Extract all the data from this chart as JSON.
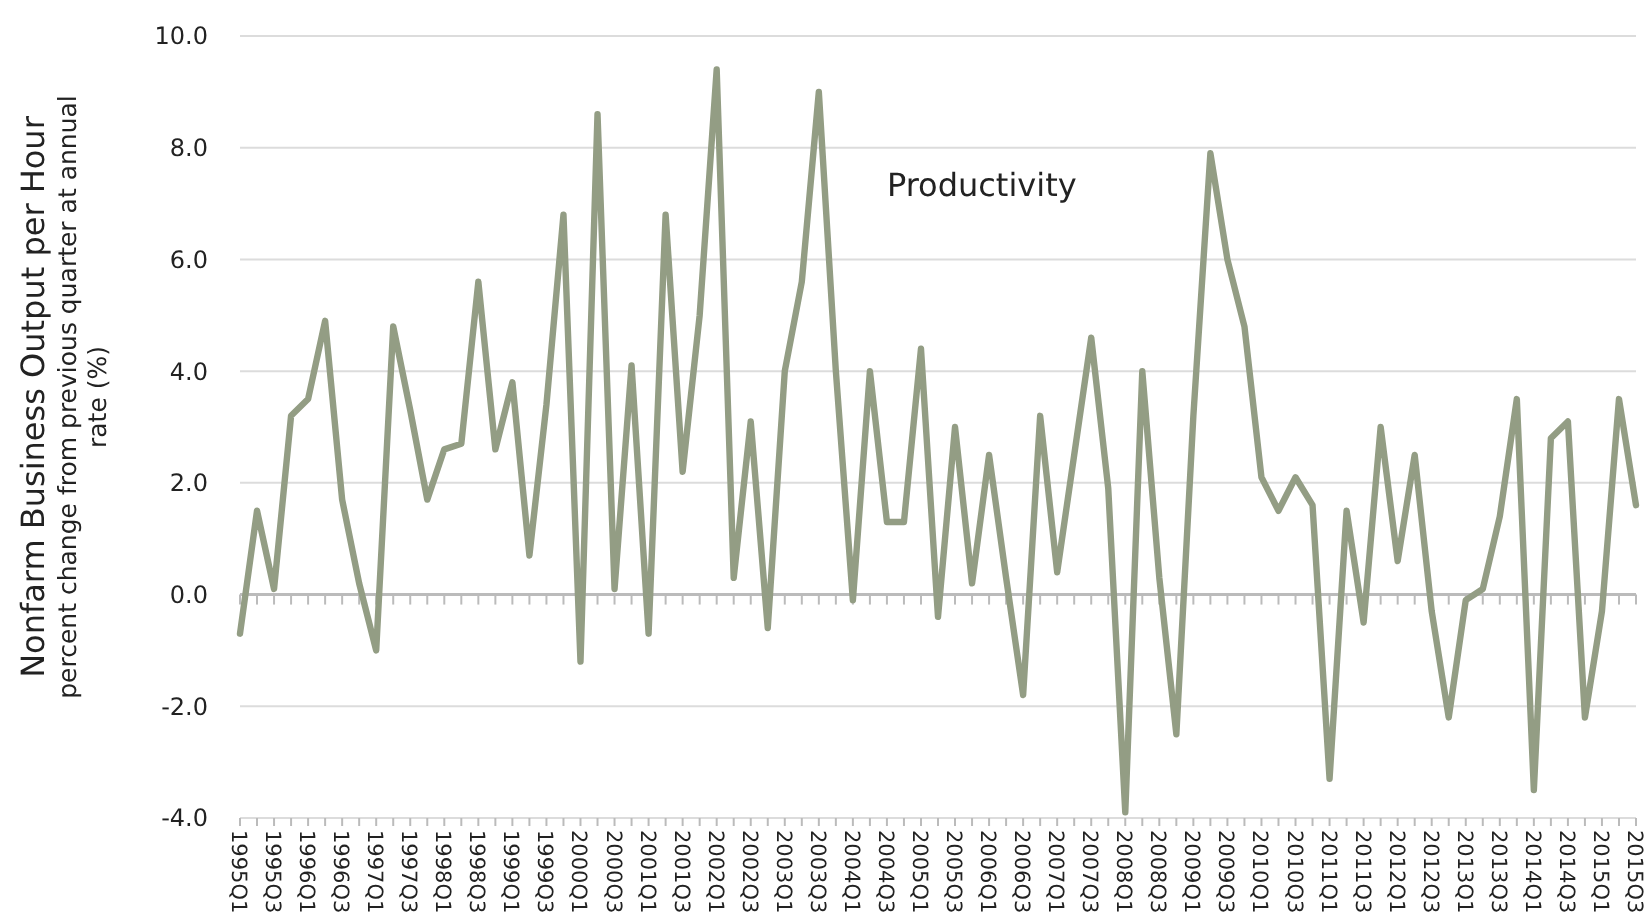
{
  "chart_data": {
    "type": "line",
    "ylabel": "Nonfarm Business Output per Hour",
    "annotations": [
      "percent change from previous quarter at annual rate (%)"
    ],
    "categories": [
      "1995Q1",
      null,
      "1995Q3",
      null,
      "1996Q1",
      null,
      "1996Q3",
      null,
      "1997Q1",
      null,
      "1997Q3",
      null,
      "1998Q1",
      null,
      "1998Q3",
      null,
      "1999Q1",
      null,
      "1999Q3",
      null,
      "2000Q1",
      null,
      "2000Q3",
      null,
      "2001Q1",
      null,
      "2001Q3",
      null,
      "2002Q1",
      null,
      "2002Q3",
      null,
      "2003Q1",
      null,
      "2003Q3",
      null,
      "2004Q1",
      null,
      "2004Q3",
      null,
      "2005Q1",
      null,
      "2005Q3",
      null,
      "2006Q1",
      null,
      "2006Q3",
      null,
      "2007Q1",
      null,
      "2007Q3",
      null,
      "2008Q1",
      null,
      "2008Q3",
      null,
      "2009Q1",
      null,
      "2009Q3",
      null,
      "2010Q1",
      null,
      "2010Q3",
      null,
      "2011Q1",
      null,
      "2011Q3",
      null,
      "2012Q1",
      null,
      "2012Q3",
      null,
      "2013Q1",
      null,
      "2013Q3",
      null,
      "2014Q1",
      null,
      "2014Q3",
      null,
      "2015Q1",
      null,
      "2015Q3"
    ],
    "series": [
      {
        "name": "Productivity",
        "color": "#939d84",
        "values": [
          -0.7,
          1.5,
          0.1,
          3.2,
          3.5,
          4.9,
          1.7,
          0.2,
          -1.0,
          4.8,
          3.3,
          1.7,
          2.6,
          2.7,
          5.6,
          2.6,
          3.8,
          0.7,
          3.4,
          6.8,
          -1.2,
          8.6,
          0.1,
          4.1,
          -0.7,
          6.8,
          2.2,
          5.0,
          9.4,
          0.3,
          3.1,
          -0.6,
          4.0,
          5.6,
          9.0,
          4.0,
          -0.1,
          4.0,
          1.3,
          1.3,
          4.4,
          -0.4,
          3.0,
          0.2,
          2.5,
          0.3,
          -1.8,
          3.2,
          0.4,
          2.5,
          4.6,
          1.9,
          -3.9,
          4.0,
          0.3,
          -2.5,
          3.2,
          7.9,
          6.0,
          4.8,
          2.1,
          1.5,
          2.1,
          1.6,
          -3.3,
          1.5,
          -0.5,
          3.0,
          0.6,
          2.5,
          -0.3,
          -2.2,
          -0.1,
          0.1,
          1.4,
          3.5,
          -3.5,
          2.8,
          3.1,
          -2.2,
          -0.3,
          3.5,
          1.6
        ]
      }
    ],
    "ylim": [
      -4,
      10
    ],
    "yticks": [
      {
        "value": -4,
        "label": "-4.0"
      },
      {
        "value": -2,
        "label": "-2.0"
      },
      {
        "value": 0,
        "label": "0.0"
      },
      {
        "value": 2,
        "label": "2.0"
      },
      {
        "value": 4,
        "label": "4.0"
      },
      {
        "value": 6,
        "label": "6.0"
      },
      {
        "value": 8,
        "label": "8.0"
      },
      {
        "value": 10,
        "label": "10.0"
      }
    ],
    "grid": "y",
    "marker": "none",
    "line_style": "solid"
  }
}
